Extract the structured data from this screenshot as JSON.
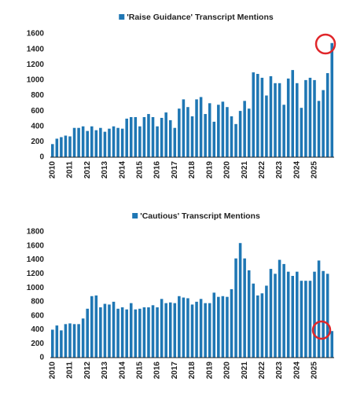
{
  "chart_data": [
    {
      "type": "bar",
      "categories": [
        "2010",
        null,
        null,
        null,
        "2011",
        null,
        null,
        null,
        "2012",
        null,
        null,
        null,
        "2013",
        null,
        null,
        null,
        "2014",
        null,
        null,
        null,
        "2015",
        null,
        null,
        null,
        "2016",
        null,
        null,
        null,
        "2017",
        null,
        null,
        null,
        "2018",
        null,
        null,
        null,
        "2019",
        null,
        null,
        null,
        "2020",
        null,
        null,
        null,
        "2021",
        null,
        null,
        null,
        "2022",
        null,
        null,
        null,
        "2023",
        null,
        null,
        null,
        "2024",
        null,
        null,
        null,
        "2025",
        null,
        null,
        null,
        null
      ],
      "series": [
        {
          "name": "'Raise Guidance' Transcript Mentions",
          "color": "#1f77b4",
          "values": [
            170,
            240,
            260,
            280,
            270,
            380,
            380,
            400,
            340,
            400,
            350,
            380,
            330,
            370,
            400,
            380,
            370,
            500,
            520,
            520,
            400,
            520,
            560,
            520,
            400,
            510,
            580,
            480,
            380,
            630,
            750,
            650,
            530,
            750,
            780,
            560,
            700,
            460,
            680,
            720,
            650,
            530,
            430,
            600,
            730,
            630,
            1100,
            1080,
            1030,
            800,
            1050,
            960,
            960,
            680,
            1020,
            1130,
            960,
            640,
            1000,
            1030,
            1000,
            730,
            870,
            1090,
            1480
          ]
        }
      ],
      "ylim": [
        0,
        1600
      ],
      "yticks": [
        0,
        200,
        400,
        600,
        800,
        1000,
        1200,
        1400,
        1600
      ]
    },
    {
      "type": "bar",
      "categories": [
        "2010",
        null,
        null,
        null,
        "2011",
        null,
        null,
        null,
        "2012",
        null,
        null,
        null,
        "2013",
        null,
        null,
        null,
        "2014",
        null,
        null,
        null,
        "2015",
        null,
        null,
        null,
        "2016",
        null,
        null,
        null,
        "2017",
        null,
        null,
        null,
        "2018",
        null,
        null,
        null,
        "2019",
        null,
        null,
        null,
        "2020",
        null,
        null,
        null,
        "2021",
        null,
        null,
        null,
        "2022",
        null,
        null,
        null,
        "2023",
        null,
        null,
        null,
        "2024",
        null,
        null,
        null,
        "2025",
        null,
        null,
        null,
        null
      ],
      "series": [
        {
          "name": "'Cautious' Transcript Mentions",
          "color": "#1f77b4",
          "values": [
            400,
            460,
            390,
            480,
            490,
            480,
            480,
            560,
            700,
            880,
            890,
            720,
            770,
            760,
            800,
            700,
            720,
            690,
            780,
            690,
            700,
            720,
            720,
            750,
            720,
            840,
            780,
            790,
            780,
            880,
            860,
            850,
            760,
            800,
            840,
            780,
            780,
            930,
            870,
            880,
            870,
            980,
            1420,
            1640,
            1420,
            1250,
            1060,
            890,
            920,
            1030,
            1270,
            1200,
            1400,
            1340,
            1230,
            1170,
            1230,
            1100,
            1100,
            1100,
            1230,
            1390,
            1240,
            1200,
            380
          ]
        }
      ],
      "ylim": [
        0,
        1800
      ],
      "yticks": [
        0,
        200,
        400,
        600,
        800,
        1000,
        1200,
        1400,
        1600,
        1800
      ]
    }
  ]
}
